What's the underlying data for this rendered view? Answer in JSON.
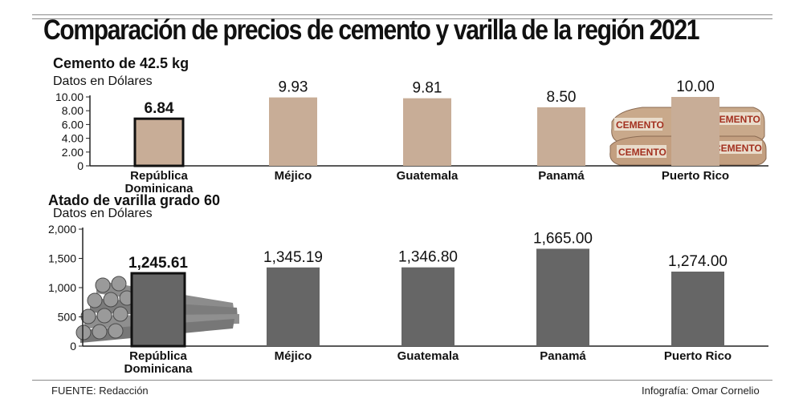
{
  "title": "Comparación de precios de cemento y varilla de la región 2021",
  "footer": {
    "source": "FUENTE: Redacción",
    "credit": "Infografía: Omar Cornelio"
  },
  "colors": {
    "cement_bar": "#c8ad97",
    "rebar_bar": "#666666",
    "highlight_border": "#111111"
  },
  "illustrations": {
    "cement": "cement-bags-icon",
    "rebar": "rebar-bundle-icon"
  },
  "chart_data": [
    {
      "type": "bar",
      "title": "Cemento de 42.5 kg",
      "subtitle": "Datos en Dólares",
      "categories": [
        "República Dominicana",
        "Méjico",
        "Guatemala",
        "Panamá",
        "Puerto Rico"
      ],
      "values": [
        6.84,
        9.93,
        9.81,
        8.5,
        10.0
      ],
      "value_labels": [
        "6.84",
        "9.93",
        "9.81",
        "8.50",
        "10.00"
      ],
      "ylim": [
        0,
        10
      ],
      "yticks": [
        "0",
        "2.00",
        "4.00",
        "6.00",
        "8.00",
        "10.00"
      ],
      "highlight_index": 0,
      "grid": false
    },
    {
      "type": "bar",
      "title": "Atado de varilla grado 60",
      "subtitle": "Datos en Dólares",
      "categories": [
        "República Dominicana",
        "Méjico",
        "Guatemala",
        "Panamá",
        "Puerto Rico"
      ],
      "values": [
        1245.61,
        1345.19,
        1346.8,
        1665.0,
        1274.0
      ],
      "value_labels": [
        "1,245.61",
        "1,345.19",
        "1,346.80",
        "1,665.00",
        "1,274.00"
      ],
      "ylim": [
        0,
        2000
      ],
      "yticks": [
        "0",
        "500",
        "1,000",
        "1,500",
        "2,000"
      ],
      "highlight_index": 0,
      "grid": false
    }
  ]
}
